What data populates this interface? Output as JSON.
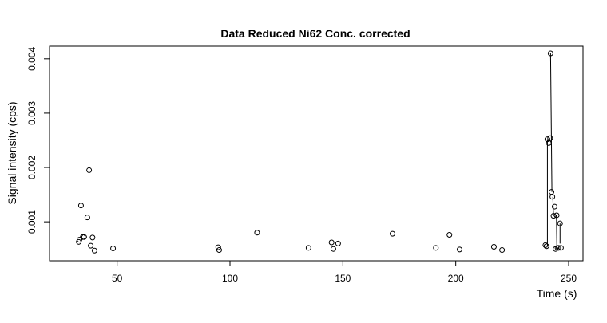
{
  "chart_data": {
    "type": "scatter",
    "title": "Data Reduced Ni62 Conc. corrected",
    "xlabel": "Time (s)",
    "ylabel": "Signal intensity (cps)",
    "xlim": [
      25,
      250
    ],
    "ylim": [
      0.0004,
      0.0041
    ],
    "x_ticks": [
      50,
      100,
      150,
      200,
      250
    ],
    "y_ticks": [
      0.001,
      0.002,
      0.003,
      0.004
    ],
    "x_tick_labels": [
      "50",
      "100",
      "150",
      "200",
      "250"
    ],
    "y_tick_labels": [
      "0.001",
      "0.002",
      "0.003",
      "0.004"
    ],
    "grid": false,
    "points": [
      {
        "x": 33.0,
        "y": 0.00063
      },
      {
        "x": 33.3,
        "y": 0.00067
      },
      {
        "x": 34.0,
        "y": 0.0013
      },
      {
        "x": 34.8,
        "y": 0.00072
      },
      {
        "x": 35.4,
        "y": 0.00072
      },
      {
        "x": 36.8,
        "y": 0.00108
      },
      {
        "x": 37.6,
        "y": 0.00195
      },
      {
        "x": 38.3,
        "y": 0.00056
      },
      {
        "x": 39.1,
        "y": 0.00071
      },
      {
        "x": 40.0,
        "y": 0.00047
      },
      {
        "x": 48.2,
        "y": 0.00051
      },
      {
        "x": 94.8,
        "y": 0.00053
      },
      {
        "x": 95.2,
        "y": 0.00048
      },
      {
        "x": 112.0,
        "y": 0.0008
      },
      {
        "x": 134.8,
        "y": 0.00052
      },
      {
        "x": 145.0,
        "y": 0.00062
      },
      {
        "x": 145.8,
        "y": 0.0005
      },
      {
        "x": 147.9,
        "y": 0.0006
      },
      {
        "x": 172.0,
        "y": 0.00078
      },
      {
        "x": 191.2,
        "y": 0.00052
      },
      {
        "x": 197.2,
        "y": 0.00076
      },
      {
        "x": 201.7,
        "y": 0.00049
      },
      {
        "x": 216.9,
        "y": 0.00054
      },
      {
        "x": 220.5,
        "y": 0.00048
      },
      {
        "x": 239.7,
        "y": 0.00057
      },
      {
        "x": 240.2,
        "y": 0.00055
      },
      {
        "x": 240.6,
        "y": 0.00252
      },
      {
        "x": 241.2,
        "y": 0.00245
      },
      {
        "x": 241.8,
        "y": 0.00254
      },
      {
        "x": 242.0,
        "y": 0.0041
      },
      {
        "x": 242.4,
        "y": 0.00155
      },
      {
        "x": 242.8,
        "y": 0.00146
      },
      {
        "x": 243.3,
        "y": 0.00111
      },
      {
        "x": 243.8,
        "y": 0.00128
      },
      {
        "x": 244.2,
        "y": 0.0005
      },
      {
        "x": 244.7,
        "y": 0.00112
      },
      {
        "x": 245.1,
        "y": 0.00052
      },
      {
        "x": 245.6,
        "y": 0.00052
      },
      {
        "x": 246.2,
        "y": 0.00097
      },
      {
        "x": 246.6,
        "y": 0.00052
      }
    ],
    "lines": [
      [
        {
          "x": 240.6,
          "y": 0.00252
        },
        {
          "x": 240.6,
          "y": 0.00055
        }
      ],
      [
        {
          "x": 242.0,
          "y": 0.0041
        },
        {
          "x": 242.6,
          "y": 0.00155
        }
      ],
      [
        {
          "x": 243.0,
          "y": 0.00146
        },
        {
          "x": 243.3,
          "y": 0.00111
        }
      ],
      [
        {
          "x": 244.6,
          "y": 0.00112
        },
        {
          "x": 244.8,
          "y": 0.0005
        }
      ],
      [
        {
          "x": 246.2,
          "y": 0.00097
        },
        {
          "x": 246.2,
          "y": 0.0006
        }
      ]
    ]
  }
}
